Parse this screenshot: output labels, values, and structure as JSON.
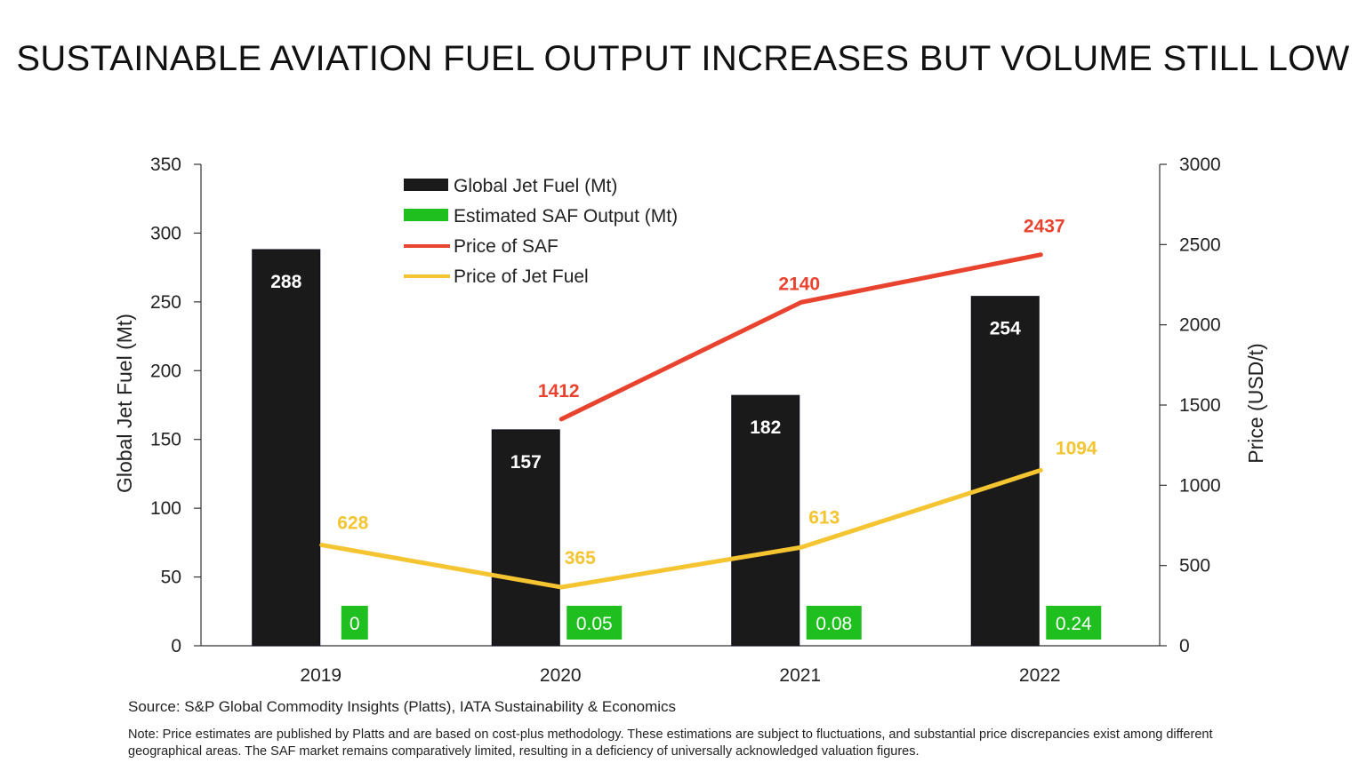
{
  "page": {
    "title": "SUSTAINABLE AVIATION FUEL OUTPUT INCREASES BUT VOLUME STILL LOW",
    "source": "Source: S&P Global Commodity Insights (Platts), IATA Sustainability & Economics",
    "note": "Note: Price estimates are published by Platts and are based on cost-plus methodology. These estimations are subject to fluctuations, and substantial price discrepancies exist among different geographical areas. The SAF market remains comparatively limited, resulting in a deficiency of universally acknowledged valuation figures."
  },
  "chart_data": {
    "type": "bar",
    "title": "SUSTAINABLE AVIATION FUEL OUTPUT INCREASES BUT VOLUME STILL LOW",
    "categories": [
      "2019",
      "2020",
      "2021",
      "2022"
    ],
    "ylabel": "Global Jet Fuel  (Mt)",
    "y2label": "Price (USD/t)",
    "ylim": [
      0,
      350
    ],
    "y2lim": [
      0,
      3000
    ],
    "yticks": [
      "0",
      "50",
      "100",
      "150",
      "200",
      "250",
      "300",
      "350"
    ],
    "y2ticks": [
      "0",
      "500",
      "1000",
      "1500",
      "2000",
      "2500",
      "3000"
    ],
    "grid": false,
    "legend_position": "top-center",
    "series": [
      {
        "name": "Global Jet Fuel (Mt)",
        "kind": "bar",
        "axis": "left",
        "color": "#1a1a1a",
        "values": [
          288,
          157,
          182,
          254
        ],
        "labels": [
          "288",
          "157",
          "182",
          "254"
        ]
      },
      {
        "name": "Estimated SAF Output (Mt)",
        "kind": "bar",
        "axis": "left",
        "color": "#1fbf1f",
        "values": [
          0,
          0.05,
          0.08,
          0.24
        ],
        "labels": [
          "0",
          "0.05",
          "0.08",
          "0.24"
        ]
      },
      {
        "name": "Price of SAF",
        "kind": "line",
        "axis": "right",
        "color": "#e8432e",
        "values": [
          null,
          1412,
          2140,
          2437
        ],
        "labels": [
          "",
          "1412",
          "2140",
          "2437"
        ]
      },
      {
        "name": "Price of Jet Fuel",
        "kind": "line",
        "axis": "right",
        "color": "#f5c431",
        "values": [
          628,
          365,
          613,
          1094
        ],
        "labels": [
          "628",
          "365",
          "613",
          "1094"
        ]
      }
    ]
  }
}
